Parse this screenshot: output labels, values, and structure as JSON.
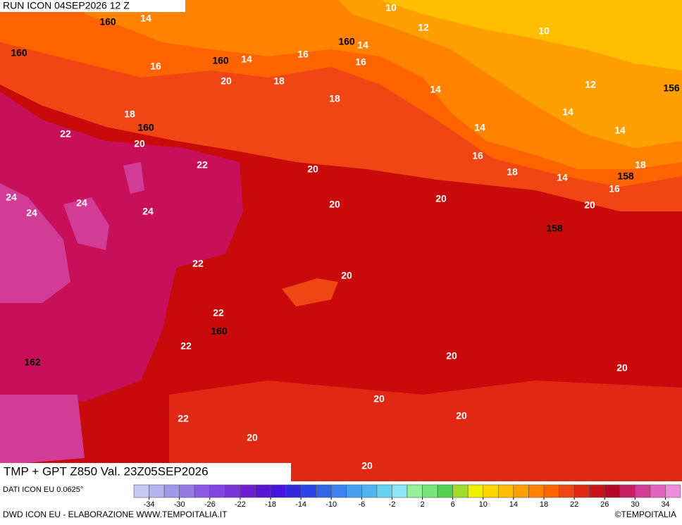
{
  "header": {
    "run": "RUN ICON 04SEP2026 12 Z"
  },
  "title": "TMP + GPT Z850 Val. 23Z05SEP2026",
  "footer": {
    "source": "DATI ICON EU 0.0625°",
    "credit": "DWD ICON EU - ELABORAZIONE WWW.TEMPOITALIA.IT",
    "copyright": "©TEMPOITALIA"
  },
  "map": {
    "labels": [
      "10",
      "14",
      "160",
      "12",
      "10",
      "160",
      "160",
      "14",
      "16",
      "160",
      "14",
      "16",
      "16",
      "20",
      "18",
      "12",
      "156",
      "14",
      "18",
      "18",
      "14",
      "160",
      "22",
      "14",
      "14",
      "20",
      "16",
      "22",
      "20",
      "18",
      "14",
      "158",
      "18",
      "16",
      "24",
      "20",
      "20",
      "20",
      "24",
      "24",
      "24",
      "158",
      "22",
      "20",
      "22",
      "160",
      "22",
      "20",
      "162",
      "20",
      "20",
      "20",
      "22",
      "20",
      "20"
    ]
  },
  "colorbar": {
    "lim": [
      -36,
      36
    ],
    "ticks": [
      -34,
      -30,
      -26,
      -22,
      -18,
      -14,
      -10,
      -6,
      -2,
      2,
      6,
      10,
      14,
      18,
      22,
      26,
      30,
      34
    ],
    "colors": [
      "#c8c8f5",
      "#b4b4f0",
      "#a096ec",
      "#9678e6",
      "#8c5ae6",
      "#8246e0",
      "#7832d8",
      "#6e1ed2",
      "#5a14d2",
      "#4614dc",
      "#3228dc",
      "#2846e6",
      "#3264e6",
      "#3c82f0",
      "#46a0f0",
      "#50b4f0",
      "#64d2f0",
      "#8ce6f5",
      "#96f096",
      "#78e678",
      "#50d250",
      "#a0dc28",
      "#f0f000",
      "#ffd700",
      "#ffbe00",
      "#ffa000",
      "#ff8200",
      "#ff6400",
      "#f04614",
      "#e02814",
      "#c81414",
      "#b40a28",
      "#c81e64",
      "#d23c96",
      "#e164be",
      "#f08cdc"
    ]
  }
}
